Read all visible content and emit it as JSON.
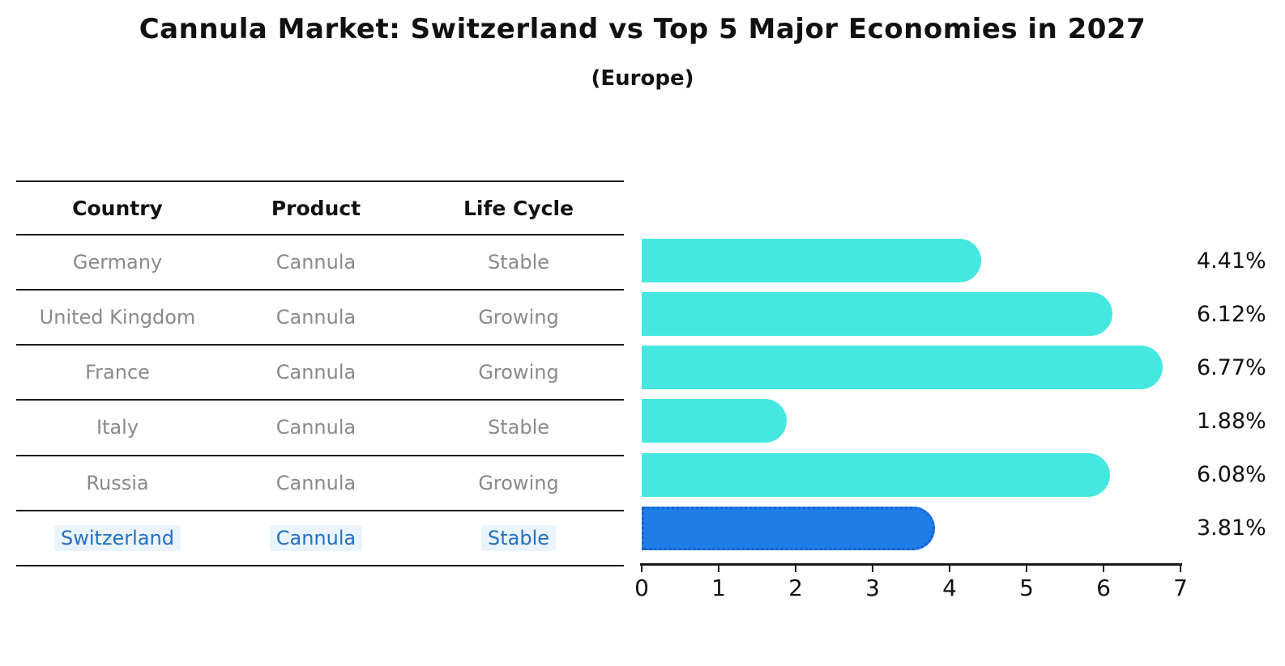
{
  "title": "Cannula Market: Switzerland vs Top 5 Major Economies in 2027",
  "subtitle": "(Europe)",
  "table": {
    "headers": [
      "Country",
      "Product",
      "Life Cycle"
    ],
    "rows": [
      {
        "country": "Germany",
        "product": "Cannula",
        "life_cycle": "Stable",
        "highlight": false
      },
      {
        "country": "United Kingdom",
        "product": "Cannula",
        "life_cycle": "Growing",
        "highlight": false
      },
      {
        "country": "France",
        "product": "Cannula",
        "life_cycle": "Growing",
        "highlight": false
      },
      {
        "country": "Italy",
        "product": "Cannula",
        "life_cycle": "Stable",
        "highlight": false
      },
      {
        "country": "Russia",
        "product": "Cannula",
        "life_cycle": "Growing",
        "highlight": false
      },
      {
        "country": "Switzerland",
        "product": "Cannula",
        "life_cycle": "Stable",
        "highlight": true
      }
    ]
  },
  "chart_data": {
    "type": "bar",
    "orientation": "horizontal",
    "title": "Cannula Market: Switzerland vs Top 5 Major Economies in 2027 (Europe)",
    "categories": [
      "Germany",
      "United Kingdom",
      "France",
      "Italy",
      "Russia",
      "Switzerland"
    ],
    "values": [
      4.41,
      6.12,
      6.77,
      1.88,
      6.08,
      3.81
    ],
    "labels": [
      "4.41%",
      "6.12%",
      "6.77%",
      "1.88%",
      "6.08%",
      "3.81%"
    ],
    "x_ticks": [
      "0",
      "1",
      "2",
      "3",
      "4",
      "5",
      "6",
      "7"
    ],
    "xlim": [
      0,
      7
    ],
    "grid": false,
    "legend_position": "none",
    "bar_color": "#45e8e0",
    "highlight_bar_color": "#1e7de8",
    "highlight_index": 5,
    "value_label_color": "#111111"
  },
  "colors": {
    "background": "#ffffff",
    "table_text": "#8a8a8a",
    "header_text": "#111111",
    "highlight_text": "#2470c2",
    "line": "#1a1a1a"
  }
}
